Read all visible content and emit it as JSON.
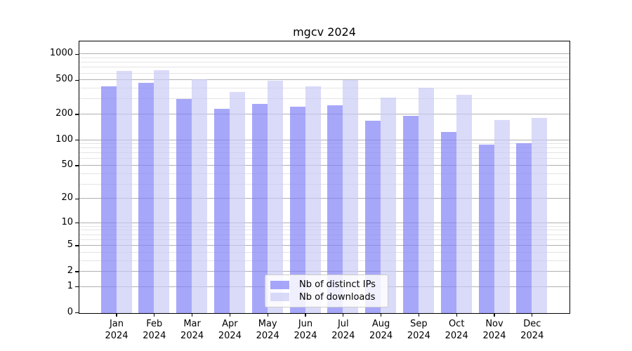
{
  "chart_data": {
    "type": "bar",
    "title": "mgcv 2024",
    "categories": [
      "Jan",
      "Feb",
      "Mar",
      "Apr",
      "May",
      "Jun",
      "Jul",
      "Aug",
      "Sep",
      "Oct",
      "Nov",
      "Dec"
    ],
    "category_year": "2024",
    "series": [
      {
        "name": "Nb of distinct IPs",
        "color": "#8282f8",
        "alpha": 0.7,
        "values": [
          425,
          468,
          307,
          235,
          270,
          250,
          259,
          170,
          195,
          126,
          89,
          93
        ]
      },
      {
        "name": "Nb of downloads",
        "color": "#c8c8f6",
        "alpha": 0.68,
        "values": [
          645,
          655,
          515,
          370,
          500,
          428,
          508,
          315,
          415,
          343,
          172,
          185
        ]
      }
    ],
    "xlabel": "",
    "ylabel": "",
    "yscale": "log1p",
    "ylim": [
      0,
      1400
    ],
    "yticks": [
      0,
      1,
      2,
      5,
      10,
      20,
      50,
      100,
      200,
      500,
      1000
    ],
    "minor_yticks": [
      3,
      4,
      6,
      7,
      8,
      9,
      30,
      40,
      60,
      70,
      80,
      90,
      300,
      400,
      600,
      700,
      800,
      900
    ],
    "grid": true,
    "legend_position": "bottom-center"
  },
  "colors": {
    "bar_distinct_ips_effective": "#aaaaf8",
    "bar_downloads_effective": "#d9d9f8",
    "grid_major": "#b0b0b0",
    "grid_minor": "#e4e4e4",
    "axis": "#000000",
    "background": "#ffffff",
    "legend_border": "#cccccc"
  }
}
